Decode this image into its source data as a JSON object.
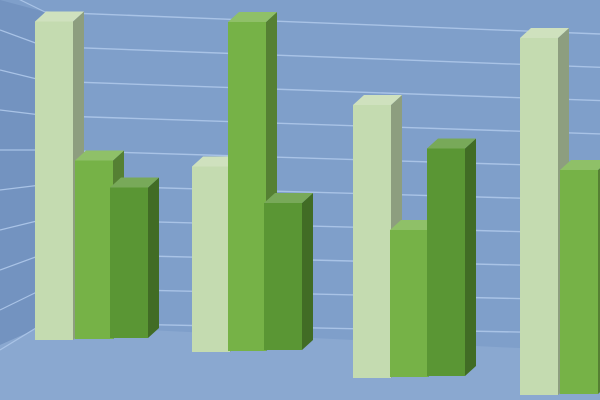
{
  "chart_data": {
    "type": "bar",
    "style": "3d-clustered",
    "title": "",
    "xlabel": "",
    "ylabel": "",
    "grid": true,
    "categories": [
      "",
      "",
      "",
      ""
    ],
    "series": [
      {
        "values": [
          9.1,
          5.3,
          7.8,
          10.2
        ]
      },
      {
        "values": [
          5.1,
          9.4,
          4.2,
          6.4
        ]
      },
      {
        "values": [
          4.3,
          4.2,
          6.5,
          null
        ]
      }
    ],
    "colors": {
      "background": "#7f9fca",
      "gridline": "#a9c3e6",
      "wall": "#7393c0",
      "floor": "#8aa8d0",
      "series": [
        "#c4dbb0",
        "#76b247",
        "#5a9634"
      ]
    }
  }
}
